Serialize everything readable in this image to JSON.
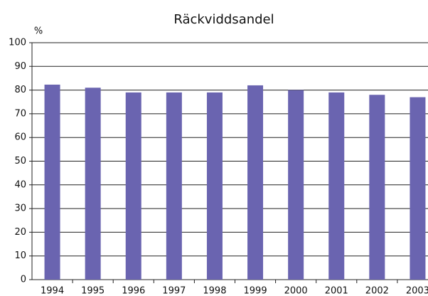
{
  "chart_data": {
    "type": "bar",
    "title": "Räckviddsandel",
    "y_label": "%",
    "categories": [
      "1994",
      "1995",
      "1996",
      "1997",
      "1998",
      "1999",
      "2000",
      "2001",
      "2002",
      "2003"
    ],
    "values": [
      82.3,
      81,
      79,
      79,
      79,
      82,
      80,
      79,
      78,
      77
    ],
    "color": "#6a64b0",
    "ylim": [
      0,
      100
    ],
    "yticks": [
      0,
      10,
      20,
      30,
      40,
      50,
      60,
      70,
      80,
      90,
      100
    ],
    "grid": true
  }
}
